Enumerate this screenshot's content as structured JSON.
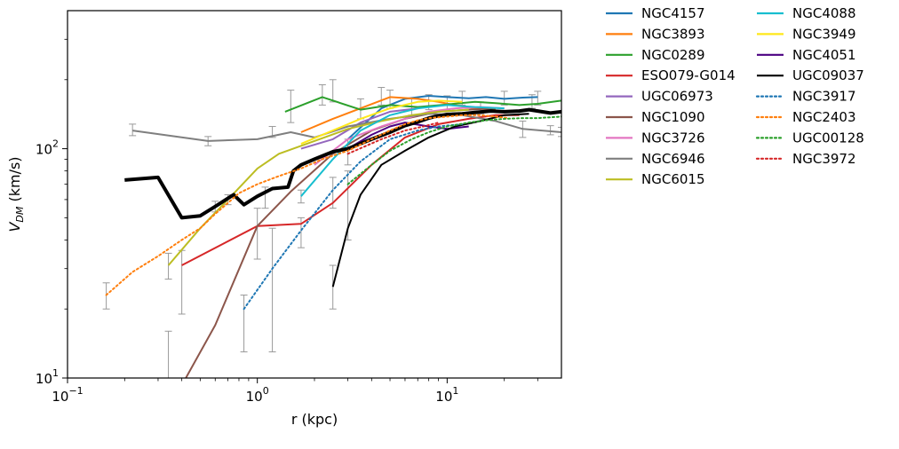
{
  "chart_data": {
    "type": "line",
    "title": "",
    "xlabel": "r (kpc)",
    "ylabel_main": "V",
    "ylabel_sub": "DM",
    "ylabel_unit": "(km/s)",
    "xscale": "log",
    "yscale": "log",
    "xlim": [
      0.1,
      40
    ],
    "ylim": [
      10,
      400
    ],
    "x_ticks": [
      {
        "value": 0.1,
        "base": "10",
        "exp": "−1"
      },
      {
        "value": 1,
        "base": "10",
        "exp": "0"
      },
      {
        "value": 10,
        "base": "10",
        "exp": "1"
      }
    ],
    "y_ticks": [
      {
        "value": 10,
        "base": "10",
        "exp": "1"
      },
      {
        "value": 100,
        "base": "10",
        "exp": "2"
      }
    ],
    "grid": false,
    "legend_position": "outside right, two columns",
    "series": [
      {
        "name": "NGC4157",
        "color": "#1f77b4",
        "style": "solid",
        "width": 2,
        "x": [
          3.0,
          4.5,
          6.0,
          8.0,
          10.0,
          13.0,
          16.0,
          20.0,
          25.0,
          30.0
        ],
        "y": [
          110,
          150,
          165,
          170,
          168,
          166,
          168,
          165,
          167,
          168
        ]
      },
      {
        "name": "NGC3893",
        "color": "#ff7f0e",
        "style": "solid",
        "width": 2,
        "x": [
          1.7,
          2.5,
          3.5,
          5.0,
          7.0,
          9.0,
          11.0,
          14.0,
          18.0
        ],
        "y": [
          118,
          135,
          150,
          168,
          165,
          160,
          155,
          150,
          148
        ]
      },
      {
        "name": "NGC0289",
        "color": "#2ca02c",
        "style": "solid",
        "width": 2,
        "x": [
          1.4,
          2.2,
          3.5,
          5.0,
          7.0,
          10.0,
          14.0,
          18.0,
          24.0,
          30.0,
          40.0
        ],
        "y": [
          145,
          168,
          148,
          155,
          152,
          156,
          160,
          158,
          155,
          157,
          162
        ]
      },
      {
        "name": "ESO079-G014",
        "color": "#d62728",
        "style": "solid",
        "width": 2,
        "x": [
          0.4,
          1.0,
          1.7,
          2.5,
          4.0,
          6.0,
          9.0,
          13.0,
          18.0,
          24.0
        ],
        "y": [
          31,
          46,
          47,
          58,
          85,
          112,
          128,
          135,
          140,
          140
        ]
      },
      {
        "name": "UGC06973",
        "color": "#9467bd",
        "style": "solid",
        "width": 2,
        "x": [
          1.7,
          2.5,
          3.5,
          5.0,
          7.0
        ],
        "y": [
          100,
          110,
          130,
          145,
          150
        ]
      },
      {
        "name": "NGC1090",
        "color": "#8c564b",
        "style": "solid",
        "width": 2,
        "x": [
          0.42,
          0.6,
          1.0,
          1.5,
          2.5,
          4.0,
          6.0,
          9.0,
          13.0,
          18.0
        ],
        "y": [
          10,
          17,
          46,
          65,
          95,
          120,
          135,
          145,
          148,
          150
        ]
      },
      {
        "name": "NGC3726",
        "color": "#e377c2",
        "style": "solid",
        "width": 2,
        "x": [
          2.0,
          3.0,
          4.5,
          6.0,
          8.0,
          11.0,
          15.0,
          20.0
        ],
        "y": [
          85,
          110,
          125,
          135,
          145,
          150,
          152,
          150
        ]
      },
      {
        "name": "NGC6946",
        "color": "#7f7f7f",
        "style": "solid",
        "width": 2,
        "x": [
          0.22,
          0.55,
          1.0,
          1.5,
          2.0,
          3.0,
          5.0,
          8.0,
          12.0,
          18.0,
          25.0,
          40.0
        ],
        "y": [
          120,
          108,
          110,
          118,
          112,
          125,
          135,
          142,
          140,
          132,
          122,
          118
        ]
      },
      {
        "name": "NGC6015",
        "color": "#bcbd22",
        "style": "solid",
        "width": 2,
        "x": [
          0.34,
          0.5,
          0.7,
          1.0,
          1.3,
          2.0,
          3.0,
          4.5,
          6.5,
          9.0,
          13.0
        ],
        "y": [
          31,
          45,
          60,
          82,
          95,
          108,
          122,
          132,
          140,
          145,
          148
        ]
      },
      {
        "name": "NGC4088",
        "color": "#17becf",
        "style": "solid",
        "width": 2,
        "x": [
          1.7,
          2.5,
          3.5,
          5.0,
          7.0,
          10.0,
          14.0,
          20.0
        ],
        "y": [
          62,
          90,
          120,
          140,
          150,
          155,
          152,
          150
        ]
      },
      {
        "name": "NGC3949",
        "color": "#ffe81a",
        "style": "solid",
        "width": 2,
        "x": [
          1.7,
          2.5,
          3.5,
          5.0,
          7.0,
          9.0,
          12.0
        ],
        "y": [
          105,
          120,
          135,
          150,
          160,
          162,
          160
        ]
      },
      {
        "name": "NGC4051",
        "color": "#4b0082",
        "style": "solid",
        "width": 2,
        "x": [
          3.0,
          4.0,
          5.0,
          6.0,
          8.0,
          10.0,
          13.0
        ],
        "y": [
          100,
          115,
          125,
          130,
          125,
          122,
          125
        ]
      },
      {
        "name": "UGC09037",
        "color": "#000000",
        "style": "solid",
        "width": 2,
        "x": [
          2.5,
          3.0,
          3.5,
          4.5,
          6.0,
          8.0,
          11.0,
          15.0,
          20.0,
          27.0
        ],
        "y": [
          25,
          45,
          63,
          85,
          98,
          112,
          125,
          132,
          140,
          142
        ]
      },
      {
        "name": "",
        "color": "#000000",
        "style": "solid",
        "width": 4,
        "x": [
          0.2,
          0.3,
          0.4,
          0.5,
          0.6,
          0.75,
          0.85,
          1.0,
          1.2,
          1.45,
          1.55,
          1.7,
          2.0,
          2.5,
          3.0,
          4.0,
          5.0,
          6.0,
          7.0,
          8.0,
          9.0,
          10.0,
          12.0,
          14.0,
          17.0,
          20.0,
          24.0,
          27.0,
          30.0,
          35.0,
          40.0
        ],
        "y": [
          73,
          75,
          50,
          51,
          56,
          63,
          57,
          62,
          67,
          68,
          80,
          85,
          90,
          97,
          100,
          110,
          118,
          126,
          131,
          136,
          139,
          141,
          142,
          144,
          146,
          145,
          146,
          148,
          146,
          143,
          145
        ]
      },
      {
        "name": "NGC3917",
        "color": "#1f77b4",
        "style": "dotted",
        "width": 2,
        "x": [
          0.85,
          1.2,
          1.7,
          2.5,
          3.5,
          5.0,
          7.0,
          9.0,
          12.0
        ],
        "y": [
          20,
          30,
          44,
          66,
          88,
          110,
          120,
          125,
          128
        ]
      },
      {
        "name": "NGC2403",
        "color": "#ff7f0e",
        "style": "dotted",
        "width": 2,
        "x": [
          0.16,
          0.22,
          0.3,
          0.4,
          0.5,
          0.6,
          0.7,
          0.8,
          1.0,
          1.3,
          1.7,
          2.2,
          3.0,
          4.0,
          5.0,
          6.0,
          7.0,
          8.0,
          10.0,
          12.0,
          15.0,
          18.0,
          21.0
        ],
        "y": [
          23,
          29,
          34,
          40,
          45,
          52,
          58,
          64,
          70,
          76,
          82,
          90,
          98,
          110,
          120,
          128,
          133,
          136,
          138,
          140,
          140,
          138,
          136
        ]
      },
      {
        "name": "UGC00128",
        "color": "#2ca02c",
        "style": "dotted",
        "width": 2,
        "x": [
          3.0,
          4.0,
          5.0,
          6.5,
          8.0,
          10.0,
          13.0,
          16.0,
          20.0,
          25.0,
          30.0,
          40.0
        ],
        "y": [
          70,
          85,
          98,
          110,
          118,
          125,
          130,
          133,
          135,
          136,
          136,
          138
        ]
      },
      {
        "name": "NGC3972",
        "color": "#d62728",
        "style": "dotted",
        "width": 2,
        "x": [
          3.0,
          4.5,
          6.0,
          7.5,
          9.0
        ],
        "y": [
          95,
          110,
          120,
          125,
          130
        ]
      }
    ],
    "error_bars": {
      "color": "#999999",
      "points": [
        [
          0.16,
          23,
          20,
          26
        ],
        [
          0.22,
          120,
          114,
          128
        ],
        [
          0.34,
          31,
          27,
          35
        ],
        [
          0.34,
          14,
          9,
          16
        ],
        [
          0.4,
          31,
          19,
          36
        ],
        [
          0.55,
          108,
          103,
          113
        ],
        [
          0.6,
          56,
          53,
          59
        ],
        [
          0.7,
          60,
          57,
          63
        ],
        [
          1.0,
          46,
          33,
          55
        ],
        [
          1.1,
          62,
          55,
          68
        ],
        [
          1.2,
          30,
          13,
          45
        ],
        [
          1.2,
          118,
          112,
          125
        ],
        [
          1.5,
          155,
          130,
          180
        ],
        [
          1.7,
          44,
          37,
          50
        ],
        [
          1.7,
          62,
          58,
          66
        ],
        [
          0.85,
          20,
          13,
          23
        ],
        [
          2.2,
          170,
          155,
          190
        ],
        [
          2.5,
          25,
          20,
          31
        ],
        [
          2.5,
          180,
          160,
          200
        ],
        [
          2.5,
          66,
          55,
          75
        ],
        [
          3.0,
          70,
          40,
          80
        ],
        [
          3.0,
          98,
          85,
          110
        ],
        [
          3.5,
          150,
          135,
          165
        ],
        [
          4.5,
          168,
          155,
          185
        ],
        [
          5.0,
          165,
          150,
          180
        ],
        [
          6.5,
          150,
          140,
          165
        ],
        [
          8.0,
          160,
          148,
          172
        ],
        [
          10.0,
          158,
          148,
          170
        ],
        [
          12.0,
          165,
          155,
          178
        ],
        [
          15.0,
          150,
          142,
          160
        ],
        [
          20.0,
          165,
          155,
          178
        ],
        [
          25.0,
          122,
          112,
          132
        ],
        [
          28.0,
          160,
          150,
          172
        ],
        [
          30.0,
          165,
          155,
          178
        ],
        [
          35.0,
          120,
          115,
          126
        ],
        [
          40.0,
          118,
          113,
          124
        ]
      ]
    }
  }
}
